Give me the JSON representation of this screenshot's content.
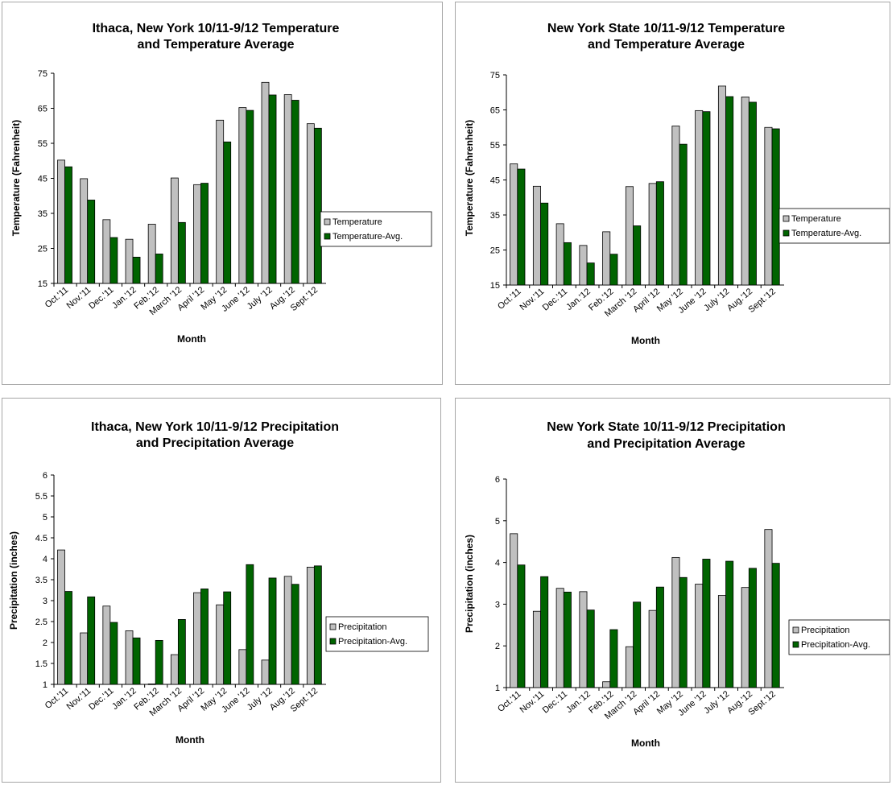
{
  "colors": {
    "primary": "#c0c0c0",
    "secondary": "#006400",
    "bar_stroke": "#000000"
  },
  "chart_data": [
    {
      "type": "bar",
      "title": [
        "Ithaca, New York 10/11-9/12 Temperature",
        "and Temperature Average"
      ],
      "xlabel": "Month",
      "ylabel": "Temperature (Fahrenheit)",
      "ylim": [
        15,
        75
      ],
      "yticks": [
        15,
        25,
        35,
        45,
        55,
        65,
        75
      ],
      "categories": [
        "Oct.'11",
        "Nov.'11",
        "Dec.'11",
        "Jan.'12",
        "Feb.'12",
        "March '12",
        "April '12",
        "May '12",
        "June '12",
        "July '12",
        "Aug.'12",
        "Sept.'12"
      ],
      "series": [
        {
          "name": "Temperature",
          "values": [
            50.2,
            44.9,
            33.2,
            27.6,
            31.9,
            45.1,
            43.2,
            61.6,
            65.2,
            72.4,
            68.9,
            60.6
          ]
        },
        {
          "name": "Temperature-Avg.",
          "values": [
            48.3,
            38.8,
            28.1,
            22.5,
            23.4,
            32.4,
            43.6,
            55.4,
            64.4,
            68.8,
            67.3,
            59.3
          ]
        }
      ],
      "legend": "right",
      "grid": false
    },
    {
      "type": "bar",
      "title": [
        "New York State 10/11-9/12 Temperature",
        "and Temperature Average"
      ],
      "xlabel": "Month",
      "ylabel": "Temperature (Fahrenheit)",
      "ylim": [
        15,
        75
      ],
      "yticks": [
        15,
        25,
        35,
        45,
        55,
        65,
        75
      ],
      "categories": [
        "Oct.'11",
        "Nov.'11",
        "Dec.'11",
        "Jan.'12",
        "Feb.'12",
        "March '12",
        "April '12",
        "May '12",
        "June '12",
        "July '12",
        "Aug.'12",
        "Sept.'12"
      ],
      "series": [
        {
          "name": "Temperature",
          "values": [
            49.6,
            43.2,
            32.5,
            26.3,
            30.2,
            43.1,
            44.0,
            60.4,
            64.8,
            71.8,
            68.7,
            60.0
          ]
        },
        {
          "name": "Temperature-Avg.",
          "values": [
            48.1,
            38.4,
            27.1,
            21.3,
            23.8,
            31.9,
            44.5,
            55.2,
            64.5,
            68.8,
            67.2,
            59.6
          ]
        }
      ],
      "legend": "right",
      "grid": false
    },
    {
      "type": "bar",
      "title": [
        "Ithaca, New York 10/11-9/12 Precipitation",
        "and Precipitation Average"
      ],
      "xlabel": "Month",
      "ylabel": "Precipitation (inches)",
      "ylim": [
        1,
        6
      ],
      "yticks": [
        1,
        1.5,
        2,
        2.5,
        3,
        3.5,
        4,
        4.5,
        5,
        5.5,
        6
      ],
      "categories": [
        "Oct.'11",
        "Nov.'11",
        "Dec.'11",
        "Jan.'12",
        "Feb.'12",
        "March '12",
        "April '12",
        "May '12",
        "June '12",
        "July '12",
        "Aug.'12",
        "Sept.'12"
      ],
      "series": [
        {
          "name": "Precipitation",
          "values": [
            4.21,
            2.23,
            2.87,
            2.28,
            1.01,
            1.71,
            3.19,
            2.9,
            1.83,
            1.58,
            3.58,
            3.8
          ]
        },
        {
          "name": "Precipitation-Avg.",
          "values": [
            3.22,
            3.09,
            2.48,
            2.11,
            2.05,
            2.55,
            3.28,
            3.21,
            3.86,
            3.54,
            3.39,
            3.83
          ]
        }
      ],
      "legend": "right",
      "grid": false
    },
    {
      "type": "bar",
      "title": [
        "New York State 10/11-9/12 Precipitation",
        "and Precipitation Average"
      ],
      "xlabel": "Month",
      "ylabel": "Precipitation (inches)",
      "ylim": [
        1,
        6
      ],
      "yticks": [
        1,
        2,
        3,
        4,
        5,
        6
      ],
      "categories": [
        "Oct.'11",
        "Nov.'11",
        "Dec.'11",
        "Jan.'12",
        "Feb.'12",
        "March '12",
        "April '12",
        "May '12",
        "June '12",
        "July '12",
        "Aug.'12",
        "Sept.'12"
      ],
      "series": [
        {
          "name": "Precipitation",
          "values": [
            4.69,
            2.83,
            3.38,
            3.3,
            1.14,
            1.98,
            2.85,
            4.12,
            3.48,
            3.21,
            3.4,
            4.79
          ]
        },
        {
          "name": "Precipitation-Avg.",
          "values": [
            3.94,
            3.66,
            3.29,
            2.86,
            2.39,
            3.05,
            3.41,
            3.64,
            4.08,
            4.03,
            3.86,
            3.98
          ]
        }
      ],
      "legend": "right",
      "grid": false
    }
  ]
}
